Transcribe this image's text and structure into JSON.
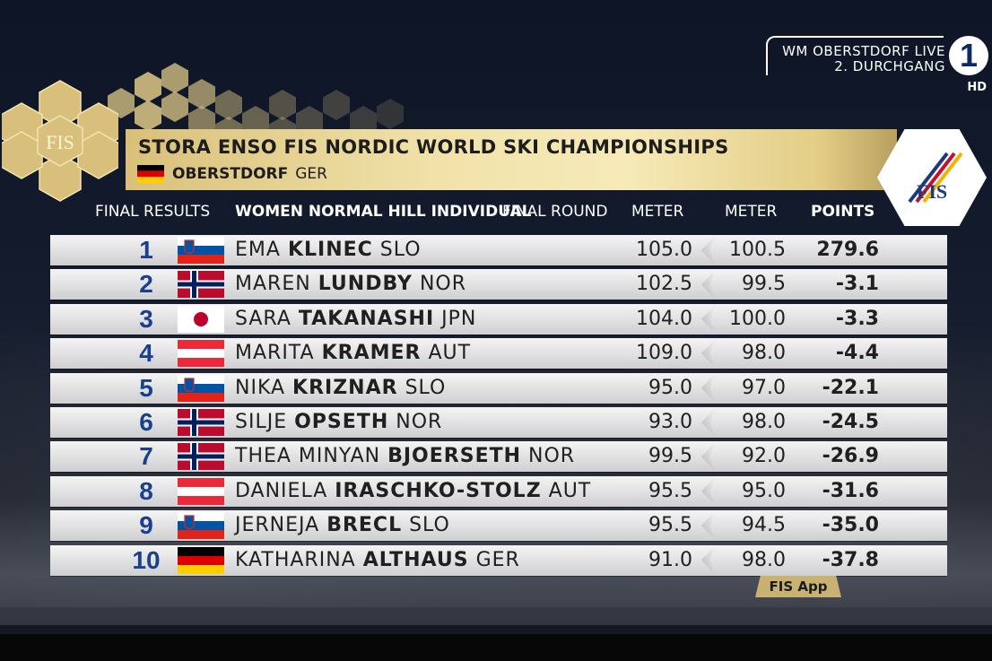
{
  "broadcast": {
    "line1": "WM OBERSTDORF LIVE",
    "line2": "2. DURCHGANG",
    "channel": "1",
    "quality": "HD"
  },
  "header": {
    "title": "STORA ENSO FIS NORDIC WORLD SKI CHAMPIONSHIPS",
    "venue": "OBERSTDORF",
    "country": "GER",
    "fis_logo_text": "FIS",
    "snowflake_logo_text": "FIS"
  },
  "columns": {
    "final_results": "FINAL RESULTS",
    "event": "WOMEN NORMAL HILL INDIVIDUAL",
    "round": "FINAL ROUND",
    "meter1": "METER",
    "meter2": "METER",
    "points": "POINTS"
  },
  "results": [
    {
      "rank": "1",
      "first": "EMA",
      "last": "KLINEC",
      "nation": "SLO",
      "flag": "slo",
      "m1": "105.0",
      "m2": "100.5",
      "points": "279.6"
    },
    {
      "rank": "2",
      "first": "MAREN",
      "last": "LUNDBY",
      "nation": "NOR",
      "flag": "nor",
      "m1": "102.5",
      "m2": "99.5",
      "points": "-3.1"
    },
    {
      "rank": "3",
      "first": "SARA",
      "last": "TAKANASHI",
      "nation": "JPN",
      "flag": "jpn",
      "m1": "104.0",
      "m2": "100.0",
      "points": "-3.3"
    },
    {
      "rank": "4",
      "first": "MARITA",
      "last": "KRAMER",
      "nation": "AUT",
      "flag": "aut",
      "m1": "109.0",
      "m2": "98.0",
      "points": "-4.4"
    },
    {
      "rank": "5",
      "first": "NIKA",
      "last": "KRIZNAR",
      "nation": "SLO",
      "flag": "slo",
      "m1": "95.0",
      "m2": "97.0",
      "points": "-22.1"
    },
    {
      "rank": "6",
      "first": "SILJE",
      "last": "OPSETH",
      "nation": "NOR",
      "flag": "nor",
      "m1": "93.0",
      "m2": "98.0",
      "points": "-24.5"
    },
    {
      "rank": "7",
      "first": "THEA MINYAN",
      "last": "BJOERSETH",
      "nation": "NOR",
      "flag": "nor",
      "m1": "99.5",
      "m2": "92.0",
      "points": "-26.9"
    },
    {
      "rank": "8",
      "first": "DANIELA",
      "last": "IRASCHKO-STOLZ",
      "nation": "AUT",
      "flag": "aut",
      "m1": "95.5",
      "m2": "95.0",
      "points": "-31.6"
    },
    {
      "rank": "9",
      "first": "JERNEJA",
      "last": "BRECL",
      "nation": "SLO",
      "flag": "slo",
      "m1": "95.5",
      "m2": "94.5",
      "points": "-35.0"
    },
    {
      "rank": "10",
      "first": "KATHARINA",
      "last": "ALTHAUS",
      "nation": "GER",
      "flag": "ger",
      "m1": "91.0",
      "m2": "98.0",
      "points": "-37.8"
    }
  ],
  "footer": {
    "app_label": "FIS App"
  },
  "colors": {
    "gold": "#e6d08e",
    "rank_blue": "#1a3f8c",
    "row_bg": "#e4e4e6"
  }
}
